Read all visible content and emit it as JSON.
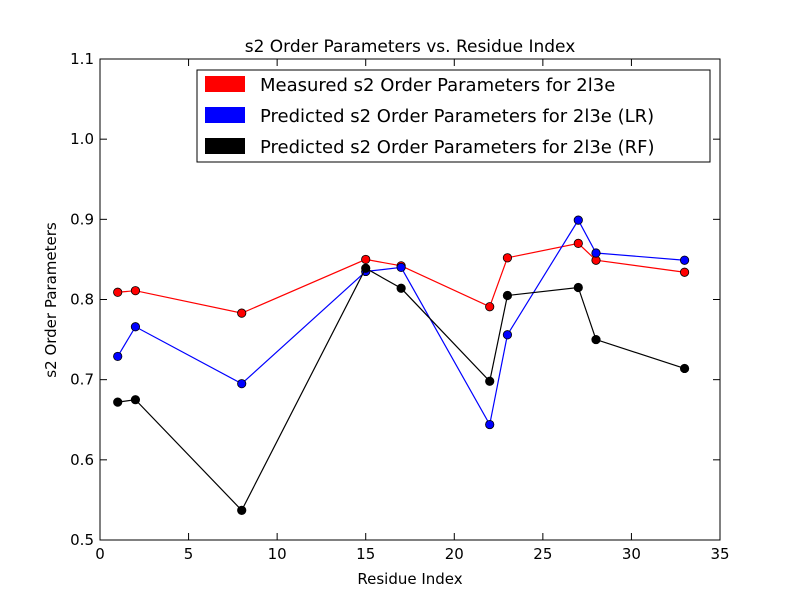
{
  "chart_data": {
    "type": "line",
    "title": "s2 Order Parameters vs. Residue Index",
    "xlabel": "Residue Index",
    "ylabel": "s2 Order Parameters",
    "xlim": [
      0,
      35
    ],
    "ylim": [
      0.5,
      1.1
    ],
    "grid": false,
    "legend_position": "top-right",
    "x_ticks": [
      {
        "value": 0,
        "label": "0"
      },
      {
        "value": 5,
        "label": "5"
      },
      {
        "value": 10,
        "label": "10"
      },
      {
        "value": 15,
        "label": "15"
      },
      {
        "value": 20,
        "label": "20"
      },
      {
        "value": 25,
        "label": "25"
      },
      {
        "value": 30,
        "label": "30"
      },
      {
        "value": 35,
        "label": "35"
      }
    ],
    "y_ticks": [
      {
        "value": 0.5,
        "label": "0.5"
      },
      {
        "value": 0.6,
        "label": "0.6"
      },
      {
        "value": 0.7,
        "label": "0.7"
      },
      {
        "value": 0.8,
        "label": "0.8"
      },
      {
        "value": 0.9,
        "label": "0.9"
      },
      {
        "value": 1.0,
        "label": "1.0"
      },
      {
        "value": 1.1,
        "label": "1.1"
      }
    ],
    "x": [
      1,
      2,
      8,
      15,
      17,
      22,
      23,
      27,
      28,
      33
    ],
    "series": [
      {
        "name": "Measured s2 Order Parameters for 2l3e",
        "color": "#ff0000",
        "values": [
          0.809,
          0.811,
          0.783,
          0.85,
          0.842,
          0.791,
          0.852,
          0.87,
          0.849,
          0.834
        ]
      },
      {
        "name": "Predicted s2 Order Parameters for 2l3e (LR)",
        "color": "#0000ff",
        "values": [
          0.729,
          0.766,
          0.695,
          0.835,
          0.84,
          0.644,
          0.756,
          0.899,
          0.858,
          0.849
        ]
      },
      {
        "name": "Predicted s2 Order Parameters for 2l3e (RF)",
        "color": "#000000",
        "values": [
          0.672,
          0.675,
          0.537,
          0.839,
          0.814,
          0.698,
          0.805,
          0.815,
          0.75,
          0.714
        ]
      }
    ]
  }
}
